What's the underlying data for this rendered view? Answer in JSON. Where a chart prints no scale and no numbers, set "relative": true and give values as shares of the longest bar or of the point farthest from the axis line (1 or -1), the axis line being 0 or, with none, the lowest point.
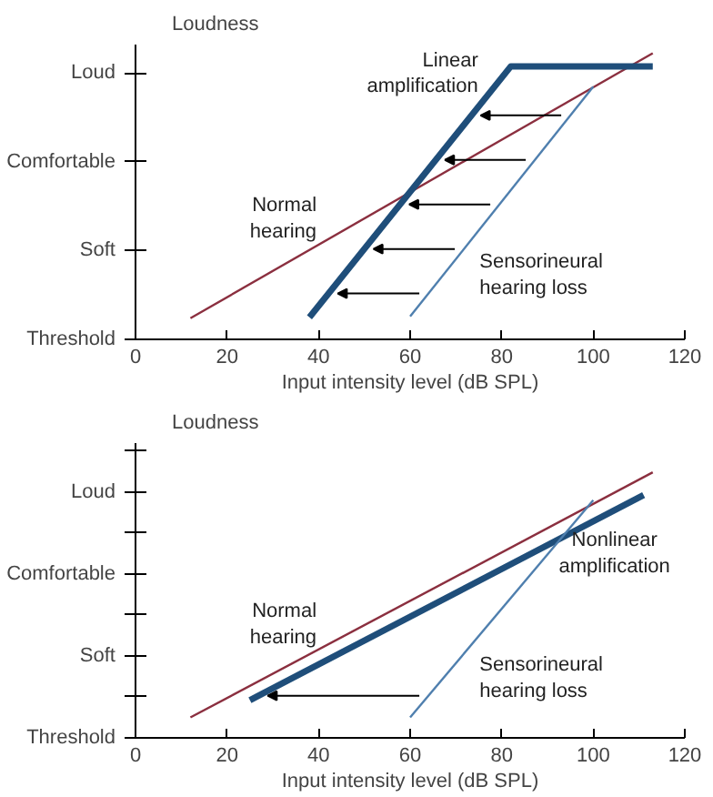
{
  "chart_data": [
    {
      "type": "line",
      "ylabel": "Loudness",
      "xlabel": "Input intensity level (dB SPL)",
      "xlim": [
        0,
        120
      ],
      "xticks": [
        0,
        20,
        40,
        60,
        80,
        100,
        120
      ],
      "y_categories": [
        "Loud",
        "Comfortable",
        "Soft",
        "Threshold"
      ],
      "relative": true,
      "grid": false,
      "series": [
        {
          "name": "Normal\nhearing",
          "color": "#8b2f3f",
          "x": [
            12,
            113
          ],
          "values": [
            0.074,
            1
          ]
        },
        {
          "name": "Linear\namplification",
          "color": "#1f4e7a",
          "x": [
            38,
            82,
            113
          ],
          "values": [
            0.077,
            0.954,
            0.954
          ]
        },
        {
          "name": "Sensorineural\nhearing loss",
          "color": "#4f7fae",
          "x": [
            60,
            100
          ],
          "values": [
            0.08,
            0.883
          ]
        }
      ]
    },
    {
      "type": "line",
      "ylabel": "Loudness",
      "xlabel": "Input intensity level (dB SPL)",
      "xlim": [
        0,
        120
      ],
      "xticks": [
        0,
        20,
        40,
        60,
        80,
        100,
        120
      ],
      "y_categories": [
        null,
        "Loud",
        null,
        "Comfortable",
        null,
        "Soft",
        null,
        "Threshold"
      ],
      "relative": true,
      "grid": false,
      "series": [
        {
          "name": "Normal\nhearing",
          "color": "#8b2f3f",
          "x": [
            12,
            113
          ],
          "values": [
            0.077,
            1
          ]
        },
        {
          "name": "Nonlinear\namplification",
          "color": "#1f4e7a",
          "x": [
            25,
            111
          ],
          "values": [
            0.142,
            0.914
          ]
        },
        {
          "name": "Sensorineural\nhearing loss",
          "color": "#4f7fae",
          "x": [
            60,
            100
          ],
          "values": [
            0.077,
            0.895
          ]
        }
      ]
    }
  ]
}
